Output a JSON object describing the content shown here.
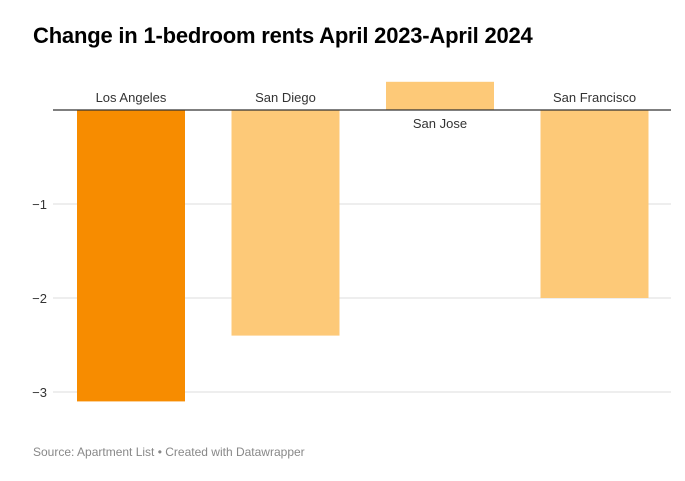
{
  "chart_data": {
    "type": "bar",
    "title": "Change in 1-bedroom rents April 2023-April 2024",
    "xlabel": "",
    "ylabel": "",
    "categories": [
      "Los Angeles",
      "San Diego",
      "San Jose",
      "San Francisco"
    ],
    "values": [
      -3.1,
      -2.4,
      0.3,
      -2.0
    ],
    "highlight_category": "Los Angeles",
    "ylim": [
      -3.2,
      0.35
    ],
    "y_ticks": [
      -1,
      -2,
      -3
    ],
    "y_tick_labels": [
      "−1",
      "−2",
      "−3"
    ],
    "grid": true,
    "legend": "none",
    "colors": {
      "highlight": "#f78c00",
      "bar": "#fdc978",
      "gridline": "#dddddd",
      "zero_line": "#333333",
      "text": "#333333",
      "source": "#888888"
    },
    "source": "Source: Apartment List • Created with Datawrapper"
  }
}
